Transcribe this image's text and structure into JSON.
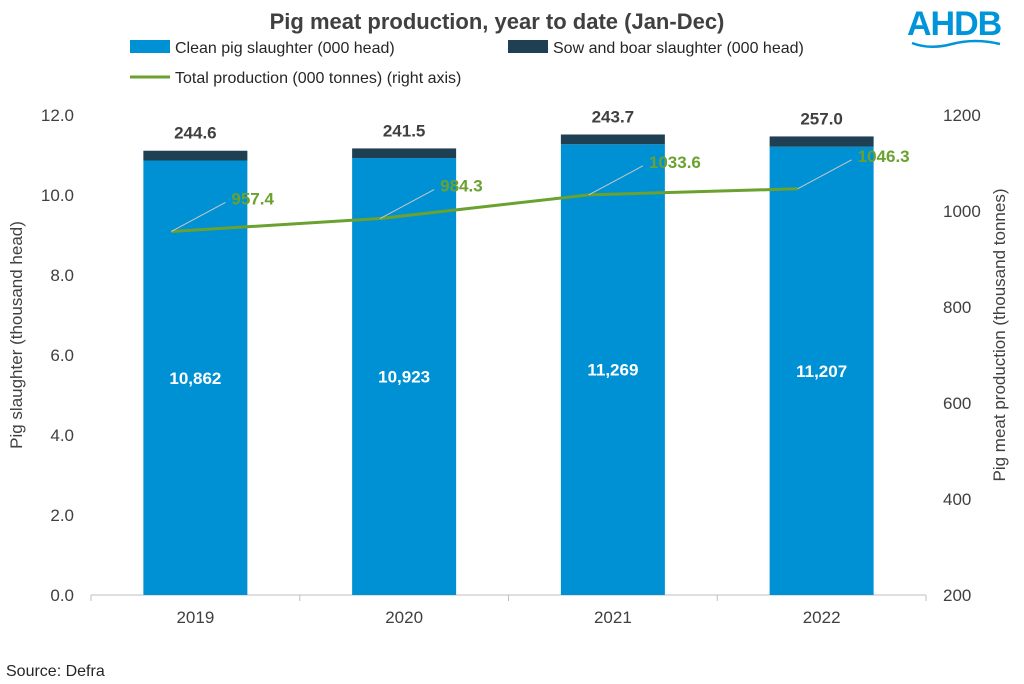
{
  "colors": {
    "clean": "#0090D4",
    "sow": "#1F3F52",
    "line": "#6AA12F",
    "logo": "#0095D9",
    "axis_text": "#404040"
  },
  "logo": {
    "text": "AHDB"
  },
  "source": "Source: Defra",
  "chart_data": {
    "type": "bar",
    "stacked": true,
    "title": "Pig meat production, year to date (Jan-Dec)",
    "xlabel": "",
    "ylabel": "Pig slaughter (thousand head)",
    "y2label": "Pig meat production (thousand tonnes)",
    "categories": [
      "2019",
      "2020",
      "2021",
      "2022"
    ],
    "ylim": [
      0,
      12
    ],
    "y_ticks": [
      "0.0",
      "2.0",
      "4.0",
      "6.0",
      "8.0",
      "10.0",
      "12.0"
    ],
    "y2lim": [
      200,
      1200
    ],
    "y2_ticks": [
      "200",
      "400",
      "600",
      "800",
      "1000",
      "1200"
    ],
    "grid": false,
    "legend_position": "top",
    "series": [
      {
        "name": "Clean pig slaughter (000 head)",
        "kind": "bar",
        "values": [
          10862,
          10923,
          11269,
          11207
        ],
        "labels": [
          "10,862",
          "10,923",
          "11,269",
          "11,207"
        ]
      },
      {
        "name": "Sow and boar slaughter (000 head)",
        "kind": "bar",
        "values": [
          244.6,
          241.5,
          243.7,
          257.0
        ],
        "labels": [
          "244.6",
          "241.5",
          "243.7",
          "257.0"
        ]
      },
      {
        "name": "Total production (000 tonnes) (right axis)",
        "kind": "line",
        "axis": "right",
        "values": [
          957.4,
          984.3,
          1033.6,
          1046.3
        ],
        "labels": [
          "957.4",
          "984.3",
          "1033.6",
          "1046.3"
        ]
      }
    ]
  }
}
